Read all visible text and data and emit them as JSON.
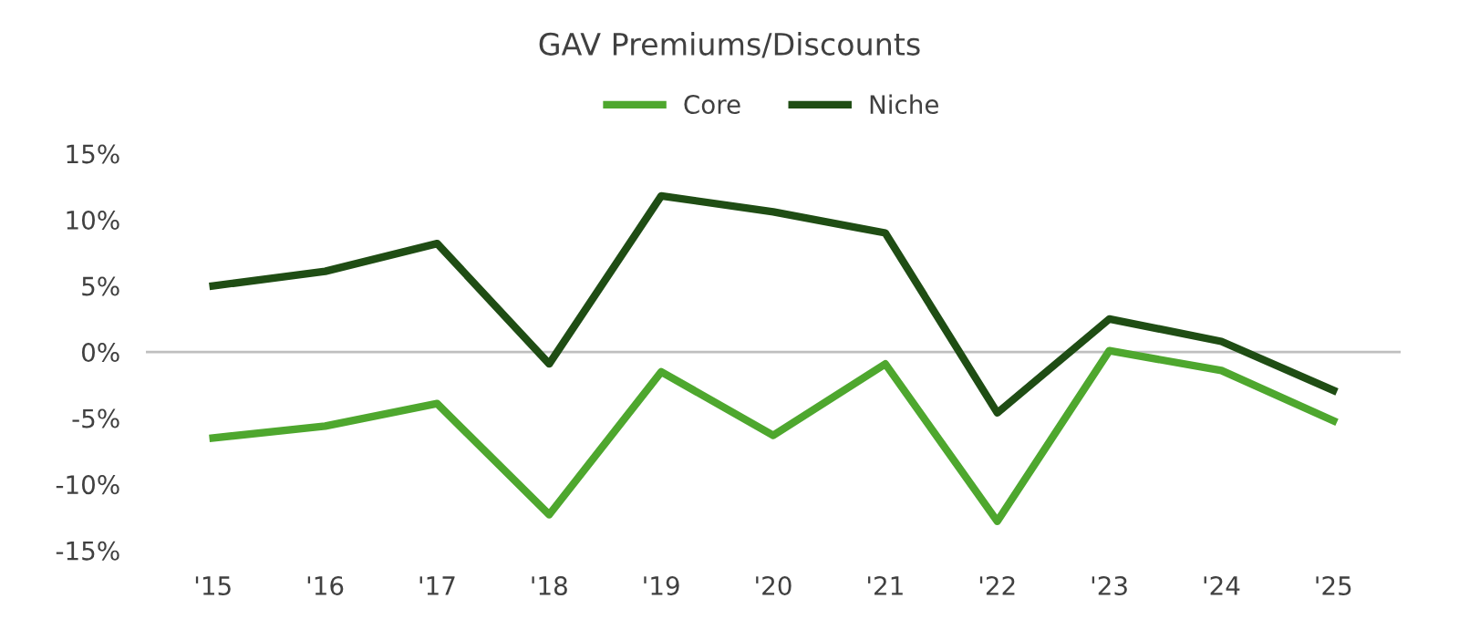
{
  "chart_data": {
    "type": "line",
    "title": "GAV Premiums/Discounts",
    "categories": [
      "'15",
      "'16",
      "'17",
      "'18",
      "'19",
      "'20",
      "'21",
      "'22",
      "'23",
      "'24",
      "'25"
    ],
    "series": [
      {
        "name": "Core",
        "color": "#4ea72e",
        "values": [
          -6.5,
          -5.6,
          -3.9,
          -12.3,
          -1.5,
          -6.3,
          -0.9,
          -12.8,
          0.1,
          -1.4,
          -5.2
        ]
      },
      {
        "name": "Niche",
        "color": "#1f4d14",
        "values": [
          5.0,
          6.1,
          8.2,
          -0.9,
          11.8,
          10.6,
          9.0,
          -4.6,
          2.5,
          0.8,
          -2.9
        ]
      }
    ],
    "ylim": [
      -15,
      15
    ],
    "yticks": [
      {
        "value": -15,
        "label": "-15%"
      },
      {
        "value": -10,
        "label": "-10%"
      },
      {
        "value": -5,
        "label": "-5%"
      },
      {
        "value": 0,
        "label": "0%"
      },
      {
        "value": 5,
        "label": "5%"
      },
      {
        "value": 10,
        "label": "10%"
      },
      {
        "value": 15,
        "label": "15%"
      }
    ],
    "ref_lines": [
      {
        "axis": "y",
        "value": 0,
        "color": "#bfbfbf"
      }
    ],
    "legend": "top",
    "grid": false,
    "marker": "none",
    "line_style": "solid"
  }
}
